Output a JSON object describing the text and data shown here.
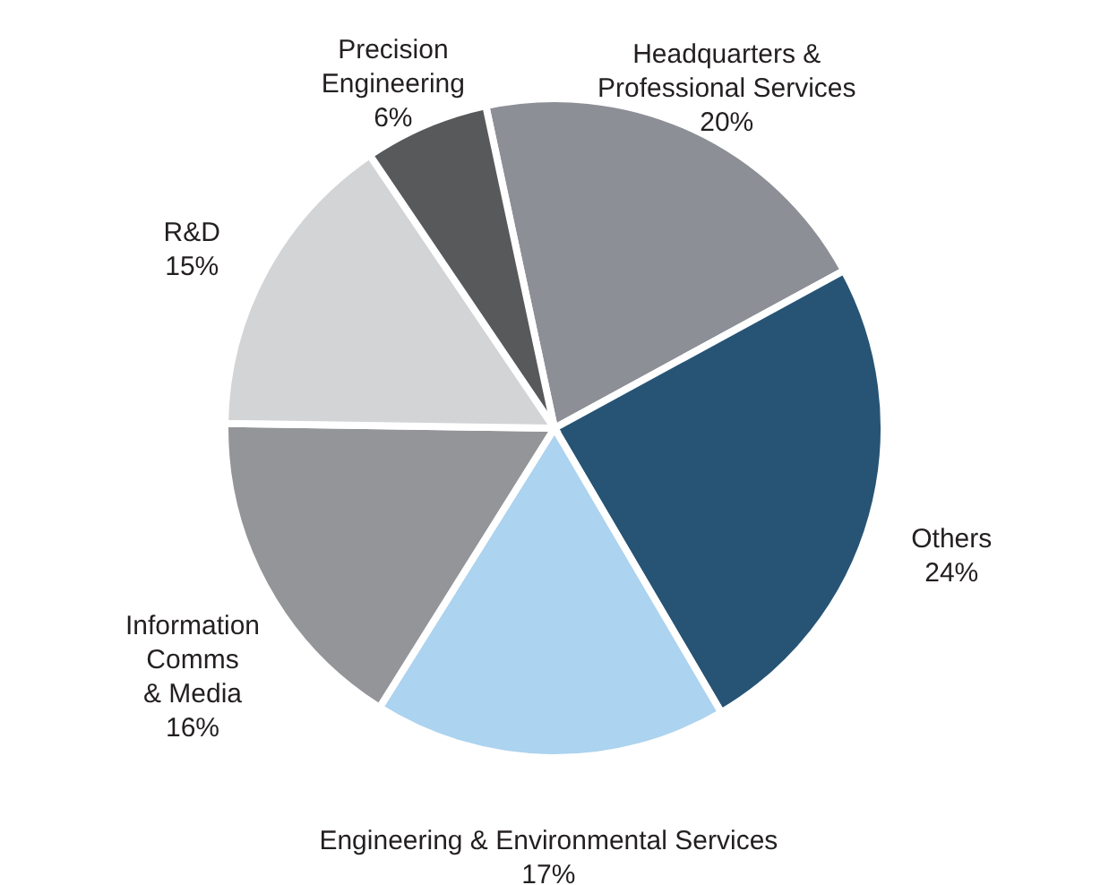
{
  "chart_data": {
    "type": "pie",
    "categories": [
      "Headquarters &\nProfessional Services",
      "Others",
      "Engineering & Environmental Services",
      "Information\nComms\n& Media",
      "R&D",
      "Precision\nEngineering"
    ],
    "values": [
      20,
      24,
      17,
      16,
      15,
      6
    ],
    "value_labels": [
      "20%",
      "24%",
      "17%",
      "16%",
      "15%",
      "6%"
    ],
    "colors": [
      "#8c8f96",
      "#275475",
      "#acd3ef",
      "#949598",
      "#d3d4d6",
      "#58595b"
    ]
  }
}
